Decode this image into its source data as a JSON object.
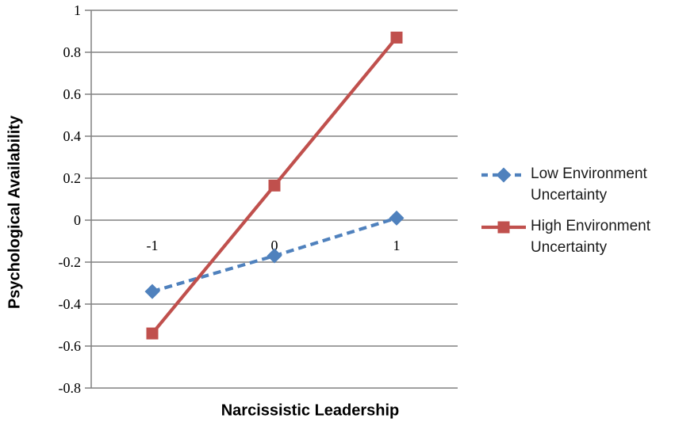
{
  "chart_data": {
    "type": "line",
    "title": "",
    "xlabel": "Narcissistic Leadership",
    "ylabel": "Psychological Availability",
    "x": [
      -1,
      0,
      1
    ],
    "x_tick_labels": [
      "-1",
      "0",
      "1"
    ],
    "y_ticks": [
      1,
      0.8,
      0.6,
      0.4,
      0.2,
      0,
      -0.2,
      -0.4,
      -0.6,
      -0.8
    ],
    "y_tick_labels": [
      "1",
      "0.8",
      "0.6",
      "0.4",
      "0.2",
      "0",
      "-0.2",
      "-0.4",
      "-0.6",
      "-0.8"
    ],
    "xlim": [
      -1.5,
      1.5
    ],
    "ylim": [
      -0.8,
      1
    ],
    "grid": true,
    "legend_position": "right",
    "colors": {
      "grid": "#808080",
      "axis": "#808080",
      "tick_text": "#000000",
      "legend_text": "#1a1a1a",
      "background": "#ffffff",
      "low_series": "#4F81BD",
      "high_series": "#C0504D"
    },
    "series": [
      {
        "name": "Low Environment Uncertainty",
        "values": [
          -0.34,
          -0.17,
          0.01
        ],
        "color": "#4F81BD",
        "line_style": "dashed",
        "marker": "diamond"
      },
      {
        "name": "High Environment Uncertainty",
        "values": [
          -0.54,
          0.165,
          0.87
        ],
        "color": "#C0504D",
        "line_style": "solid",
        "marker": "square"
      }
    ]
  }
}
